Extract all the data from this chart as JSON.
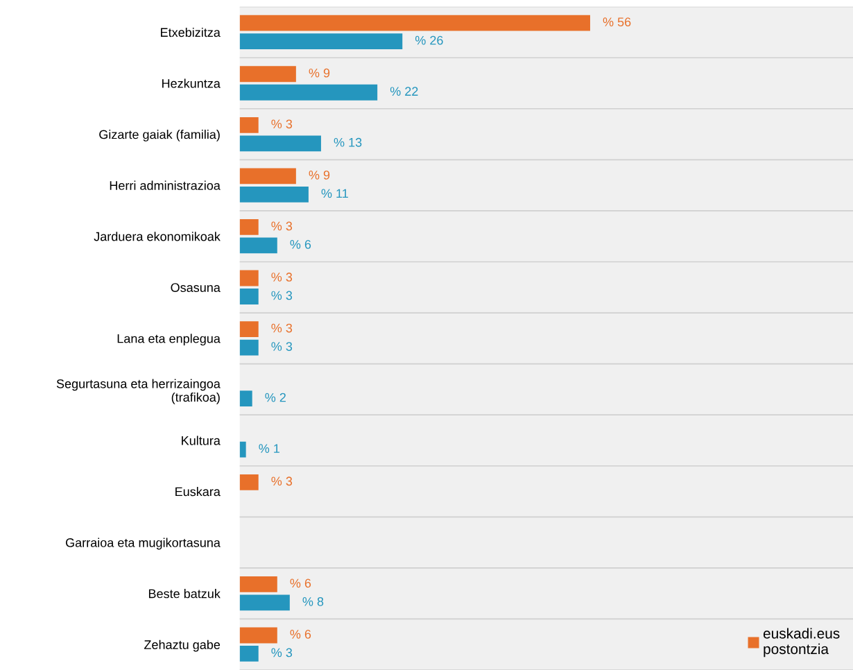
{
  "chart_data": {
    "type": "bar",
    "orientation": "horizontal",
    "categories": [
      "Etxebizitza",
      "Hezkuntza",
      "Gizarte gaiak (familia)",
      "Herri administrazioa",
      "Jarduera ekonomikoak",
      "Osasuna",
      "Lana eta enplegua",
      "Segurtasuna eta herrizaingoa\n(trafikoa)",
      "Kultura",
      "Euskara",
      "Garraioa eta mugikortasuna",
      "Beste batzuk",
      "Zehaztu gabe"
    ],
    "series": [
      {
        "name": "euskadi.eus\npostontzia",
        "color": "#e8702a",
        "values": [
          56,
          9,
          3,
          9,
          3,
          3,
          3,
          null,
          null,
          3,
          null,
          6,
          6
        ],
        "value_labels": [
          "% 56",
          "% 9",
          "% 3",
          "% 9",
          "% 3",
          "% 3",
          "% 3",
          null,
          null,
          "% 3",
          null,
          "% 6",
          "% 6"
        ]
      },
      {
        "color": "#2596be",
        "values": [
          26,
          22,
          13,
          11,
          6,
          3,
          3,
          2,
          1,
          null,
          null,
          8,
          3
        ],
        "value_labels": [
          "% 26",
          "% 22",
          "% 13",
          "% 11",
          "% 6",
          "% 3",
          "% 3",
          "% 2",
          "% 1",
          null,
          null,
          "% 8",
          "% 3"
        ]
      }
    ],
    "grid": "y",
    "legend": "bottom right"
  }
}
